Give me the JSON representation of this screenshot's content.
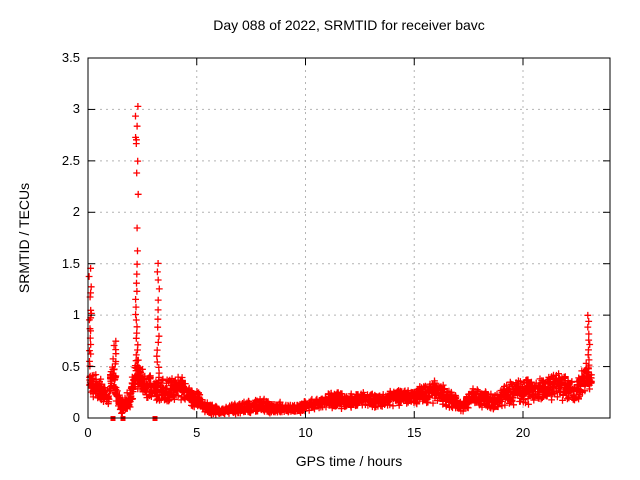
{
  "chart_data": {
    "type": "scatter",
    "title": "Day 088 of 2022, SRMTID for receiver bavc",
    "xlabel": "GPS time / hours",
    "ylabel": "SRMTID / TECUs",
    "xlim": [
      0,
      24
    ],
    "ylim": [
      0,
      3.5
    ],
    "x_ticks": [
      {
        "v": 0,
        "label": "0"
      },
      {
        "v": 5,
        "label": "5"
      },
      {
        "v": 10,
        "label": "10"
      },
      {
        "v": 15,
        "label": "15"
      },
      {
        "v": 20,
        "label": "20"
      }
    ],
    "y_ticks": [
      {
        "v": 0,
        "label": "0"
      },
      {
        "v": 0.5,
        "label": "0.5"
      },
      {
        "v": 1,
        "label": "1"
      },
      {
        "v": 1.5,
        "label": "1.5"
      },
      {
        "v": 2,
        "label": "2"
      },
      {
        "v": 2.5,
        "label": "2.5"
      },
      {
        "v": 3,
        "label": "3"
      },
      {
        "v": 3.5,
        "label": "3.5"
      }
    ],
    "grid": true,
    "marker": "plus",
    "marker_color": "#ff0000",
    "grid_color": "#b4b4b4",
    "axis_color": "#000000",
    "legend": "none",
    "spike_columns": [
      {
        "x": 0.1,
        "spread": 0.06,
        "values": [
          1.45,
          1.37,
          1.28,
          1.22,
          1.18,
          1.05,
          1.02,
          0.98,
          0.95,
          0.87,
          0.85,
          0.78,
          0.72,
          0.65,
          0.62,
          0.55,
          0.5
        ]
      },
      {
        "x": 1.2,
        "spread": 0.1,
        "values": [
          0.75,
          0.7,
          0.66,
          0.62,
          0.58,
          0.55,
          0.52
        ]
      },
      {
        "x": 2.25,
        "spread": 0.07,
        "values": [
          3.03,
          2.93,
          2.84,
          2.73,
          2.7,
          2.67,
          2.5,
          2.38,
          2.17,
          1.85,
          1.62,
          1.5,
          1.4,
          1.31,
          1.23,
          1.15,
          1.08,
          1.01,
          0.95,
          0.89,
          0.83,
          0.77,
          0.71,
          0.66,
          0.61,
          0.56,
          0.51,
          0.46,
          0.42,
          0.38
        ]
      },
      {
        "x": 3.22,
        "spread": 0.06,
        "values": [
          1.5,
          1.42,
          1.34,
          1.26,
          1.15,
          1.05,
          0.96,
          0.88,
          0.8,
          0.73,
          0.66,
          0.6,
          0.54,
          0.49,
          0.44,
          0.39,
          0.35,
          0.3,
          0.26,
          0.22
        ]
      },
      {
        "x": 23.02,
        "spread": 0.06,
        "values": [
          1.0,
          0.94,
          0.88,
          0.82,
          0.76,
          0.71,
          0.66,
          0.61,
          0.56,
          0.52,
          0.48,
          0.44,
          0.4,
          0.36,
          0.32,
          0.28
        ]
      }
    ],
    "zero_squares_x": [
      1.15,
      1.61,
      3.08
    ],
    "band_envelope": [
      {
        "x": 0.05,
        "lo": 0.22,
        "hi": 0.5,
        "n": 55
      },
      {
        "x": 0.55,
        "lo": 0.14,
        "hi": 0.4,
        "n": 40
      },
      {
        "x": 0.95,
        "lo": 0.1,
        "hi": 0.28,
        "n": 18
      },
      {
        "x": 1.1,
        "lo": 0.3,
        "hi": 0.62,
        "n": 30
      },
      {
        "x": 1.4,
        "lo": 0.06,
        "hi": 0.28,
        "n": 20
      },
      {
        "x": 1.55,
        "lo": 0.04,
        "hi": 0.18,
        "n": 35
      },
      {
        "x": 1.95,
        "lo": 0.08,
        "hi": 0.3,
        "n": 30
      },
      {
        "x": 2.2,
        "lo": 0.3,
        "hi": 0.6,
        "n": 55
      },
      {
        "x": 2.6,
        "lo": 0.16,
        "hi": 0.45,
        "n": 45
      },
      {
        "x": 3.05,
        "lo": 0.15,
        "hi": 0.45,
        "n": 20
      },
      {
        "x": 3.3,
        "lo": 0.12,
        "hi": 0.42,
        "n": 45
      },
      {
        "x": 3.75,
        "lo": 0.12,
        "hi": 0.38,
        "n": 42
      },
      {
        "x": 4.2,
        "lo": 0.18,
        "hi": 0.46,
        "n": 52
      },
      {
        "x": 4.7,
        "lo": 0.1,
        "hi": 0.3,
        "n": 35
      },
      {
        "x": 5.05,
        "lo": 0.08,
        "hi": 0.27,
        "n": 40
      },
      {
        "x": 5.5,
        "lo": 0.03,
        "hi": 0.15,
        "n": 65
      },
      {
        "x": 6.1,
        "lo": 0.02,
        "hi": 0.11,
        "n": 150
      },
      {
        "x": 7.9,
        "lo": 0.05,
        "hi": 0.2,
        "n": 75
      },
      {
        "x": 8.6,
        "lo": 0.04,
        "hi": 0.16,
        "n": 60
      },
      {
        "x": 9.4,
        "lo": 0.04,
        "hi": 0.14,
        "n": 80
      },
      {
        "x": 10.5,
        "lo": 0.07,
        "hi": 0.2,
        "n": 70
      },
      {
        "x": 11.3,
        "lo": 0.1,
        "hi": 0.27,
        "n": 60
      },
      {
        "x": 11.9,
        "lo": 0.08,
        "hi": 0.24,
        "n": 75
      },
      {
        "x": 12.7,
        "lo": 0.1,
        "hi": 0.27,
        "n": 70
      },
      {
        "x": 13.5,
        "lo": 0.08,
        "hi": 0.24,
        "n": 70
      },
      {
        "x": 14.3,
        "lo": 0.12,
        "hi": 0.3,
        "n": 65
      },
      {
        "x": 15.0,
        "lo": 0.12,
        "hi": 0.28,
        "n": 70
      },
      {
        "x": 15.8,
        "lo": 0.14,
        "hi": 0.4,
        "n": 60
      },
      {
        "x": 16.4,
        "lo": 0.1,
        "hi": 0.32,
        "n": 65
      },
      {
        "x": 17.2,
        "lo": 0.04,
        "hi": 0.17,
        "n": 40
      },
      {
        "x": 17.7,
        "lo": 0.12,
        "hi": 0.35,
        "n": 75
      },
      {
        "x": 18.6,
        "lo": 0.06,
        "hi": 0.23,
        "n": 60
      },
      {
        "x": 19.3,
        "lo": 0.12,
        "hi": 0.34,
        "n": 62
      },
      {
        "x": 20.0,
        "lo": 0.12,
        "hi": 0.4,
        "n": 58
      },
      {
        "x": 20.6,
        "lo": 0.14,
        "hi": 0.38,
        "n": 88
      },
      {
        "x": 21.6,
        "lo": 0.17,
        "hi": 0.47,
        "n": 82
      },
      {
        "x": 22.5,
        "lo": 0.14,
        "hi": 0.38,
        "n": 42
      },
      {
        "x": 22.9,
        "lo": 0.25,
        "hi": 0.55,
        "n": 22
      },
      {
        "x": 23.15,
        "lo": 0.3,
        "hi": 0.45,
        "n": 0
      }
    ]
  }
}
